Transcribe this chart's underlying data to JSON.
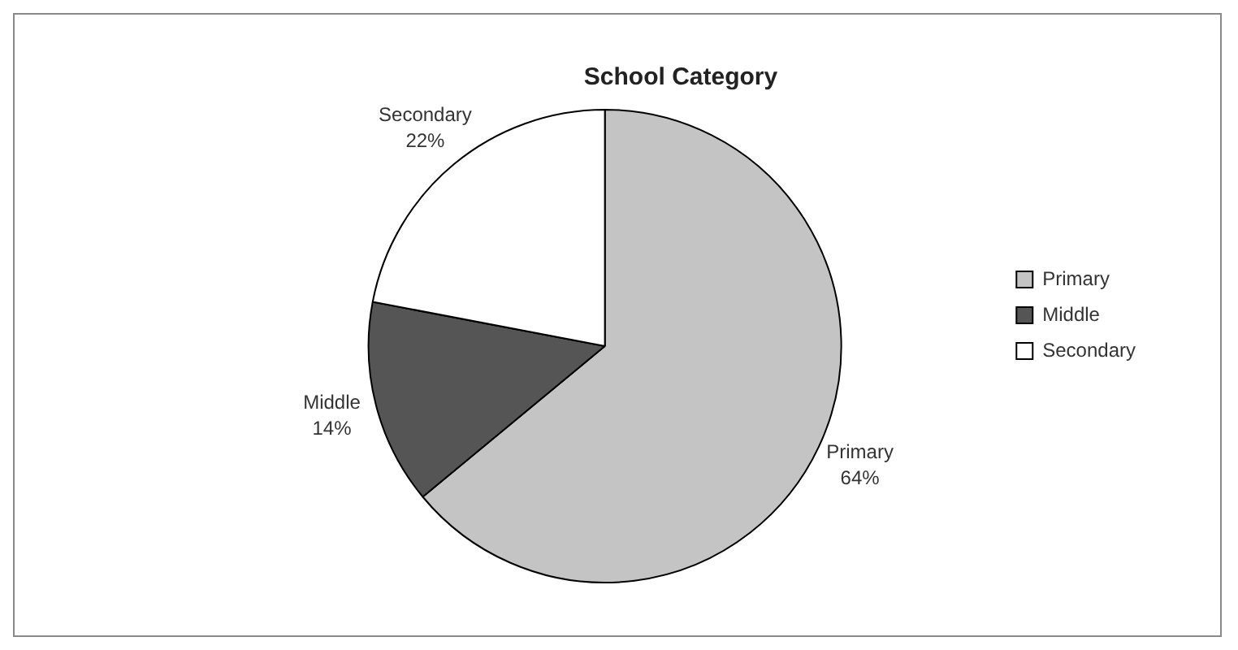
{
  "chart_data": {
    "type": "pie",
    "title": "School Category",
    "categories": [
      "Primary",
      "Middle",
      "Secondary"
    ],
    "values": [
      64,
      14,
      22
    ],
    "value_labels": [
      "64%",
      "14%",
      "22%"
    ],
    "colors": [
      "#c4c4c4",
      "#555555",
      "#ffffff"
    ],
    "legend": "right"
  }
}
